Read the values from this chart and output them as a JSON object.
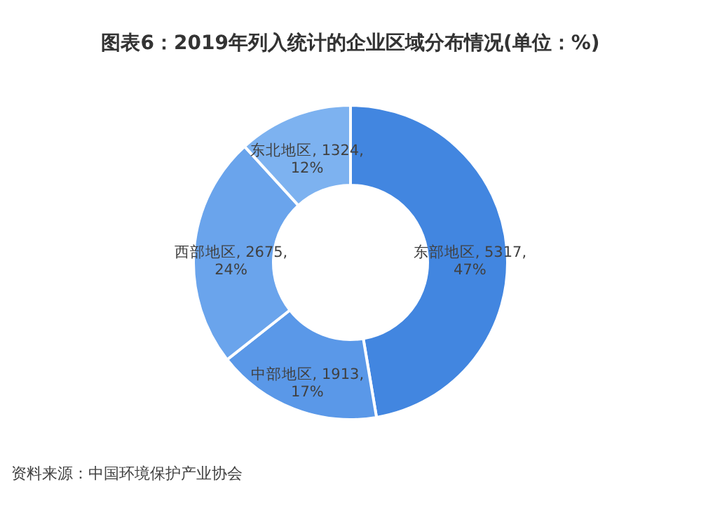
{
  "chart_data": {
    "type": "donut",
    "title": "图表6：2019年列入统计的企业区域分布情况(单位：%)",
    "categories": [
      "东部地区",
      "中部地区",
      "西部地区",
      "东北地区"
    ],
    "values": [
      5317,
      1913,
      2675,
      1324
    ],
    "colors": [
      "#4286e0",
      "#5a98e8",
      "#6aa4ec",
      "#7db2f0"
    ],
    "value_labels": [
      "5317,\n47%",
      "1913,\n17%",
      "2675,\n24%",
      "1324,\n12%"
    ],
    "annotations": [
      "资料来源：中国环境保护产业协会"
    ]
  }
}
